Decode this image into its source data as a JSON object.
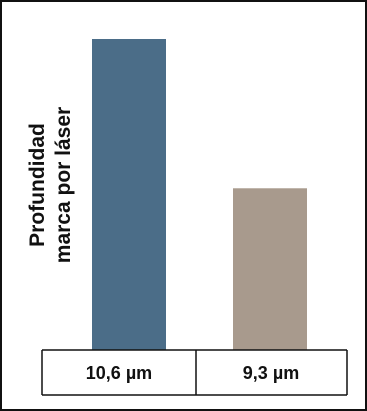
{
  "chart_data": {
    "type": "bar",
    "title": "",
    "xlabel": "",
    "ylabel_lines": [
      "Profundidad",
      "marca por láser"
    ],
    "categories": [
      "10,6 µm",
      "9,3 µm"
    ],
    "values": [
      100,
      52
    ],
    "ylim": [
      0,
      100
    ],
    "grid": false,
    "colors": [
      "#4b6d88",
      "#a89a8d"
    ]
  }
}
